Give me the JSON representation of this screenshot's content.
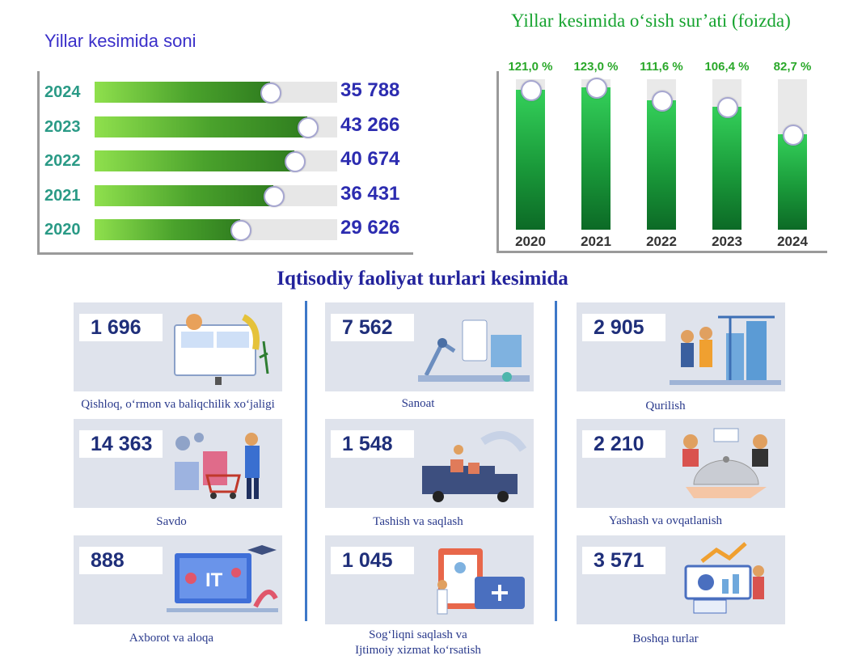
{
  "left_panel": {
    "title": "Yillar kesimida soni"
  },
  "right_panel": {
    "title": "Yillar kesimida o‘sish sur’ati (foizda)"
  },
  "section_title": "Iqtisodiy faoliyat turlari kesimida",
  "chart_data": [
    {
      "type": "bar",
      "orientation": "horizontal",
      "title": "Yillar kesimida soni",
      "categories": [
        "2024",
        "2023",
        "2022",
        "2021",
        "2020"
      ],
      "values": [
        35788,
        43266,
        40674,
        36431,
        29626
      ],
      "value_labels": [
        "35 788",
        "43 266",
        "40 674",
        "36 431",
        "29 626"
      ],
      "xlim": [
        0,
        85000
      ]
    },
    {
      "type": "bar",
      "orientation": "vertical",
      "title": "Yillar kesimida o‘sish sur’ati (foizda)",
      "categories": [
        "2020",
        "2021",
        "2022",
        "2023",
        "2024"
      ],
      "values": [
        121.0,
        123.0,
        111.6,
        106.4,
        82.7
      ],
      "value_labels": [
        "121,0 %",
        "123,0 %",
        "111,6 %",
        "106,4 %",
        "82,7 %"
      ],
      "ylim": [
        0,
        130
      ]
    }
  ],
  "cards": [
    {
      "value": "1 696",
      "label": "Qishloq, o‘rmon va baliqchilik xo‘jaligi",
      "icon": "agriculture-icon"
    },
    {
      "value": "7 562",
      "label": "Sanoat",
      "icon": "industry-icon"
    },
    {
      "value": "2 905",
      "label": "Qurilish",
      "icon": "construction-icon"
    },
    {
      "value": "14 363",
      "label": "Savdo",
      "icon": "shopping-icon"
    },
    {
      "value": "1 548",
      "label": "Tashish va saqlash",
      "icon": "delivery-truck-icon"
    },
    {
      "value": "2 210",
      "label": "Yashash va ovqatlanish",
      "icon": "food-service-icon"
    },
    {
      "value": "888",
      "label": "Axborot va aloqa",
      "icon": "it-icon"
    },
    {
      "value": "1 045",
      "label_line1": "Sog‘liqni saqlash va",
      "label_line2": "Ijtimoiy xizmat ko‘rsatish",
      "icon": "healthcare-icon"
    },
    {
      "value": "3 571",
      "label": "Boshqa turlar",
      "icon": "analytics-icon"
    }
  ],
  "colors": {
    "bar_green": "#4aa22c",
    "vertical_bar_green": "#1a9a3a",
    "count_blue": "#2c2cb0",
    "year_teal": "#2a9a86",
    "title_blue": "#3a2fc9",
    "title_green": "#16a32f"
  }
}
